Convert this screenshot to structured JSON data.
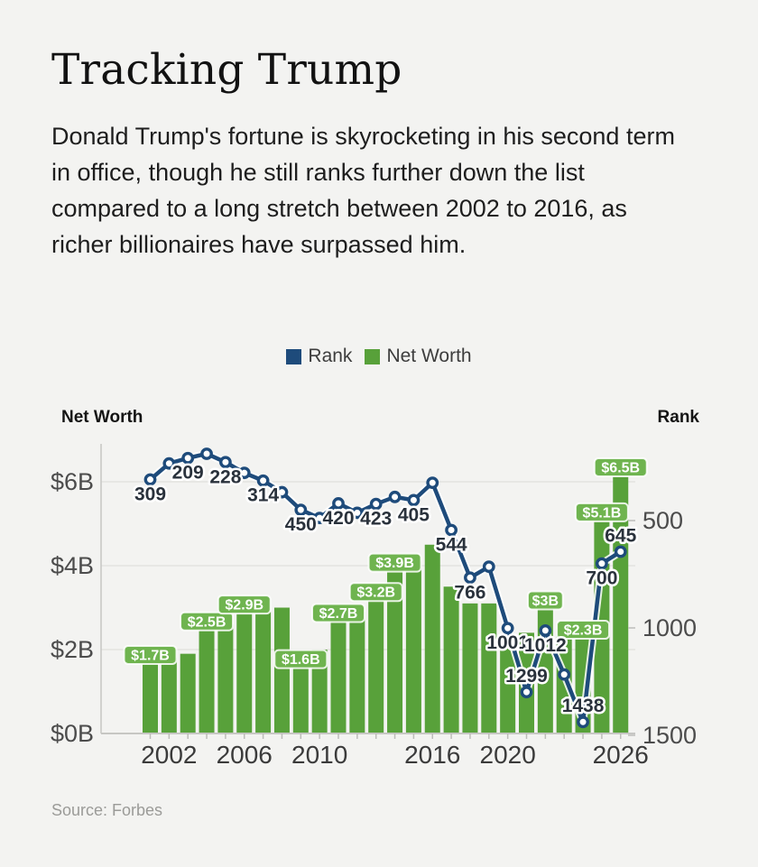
{
  "page": {
    "title": "Tracking Trump",
    "subtitle": "Donald Trump's fortune is skyrocketing in his second term in office, though he still ranks further down the list compared to a long stretch between 2002 to 2016, as richer billionaires have surpassed him.",
    "source": "Source: Forbes"
  },
  "legend": {
    "items": [
      {
        "label": "Rank",
        "color": "#1e4b7b"
      },
      {
        "label": "Net Worth",
        "color": "#58a13a"
      }
    ]
  },
  "axes": {
    "left_title": "Net Worth",
    "right_title": "Rank"
  },
  "colors": {
    "background": "#f3f3f1",
    "bar_green": "#58a13a",
    "label_pill_green": "#6fb44f",
    "line_navy": "#1e4b7b",
    "rank_label_text": "#2a323c",
    "gridline": "#e3e3e0",
    "axis_line": "#c6c6c3",
    "tick_label": "#4c4c4c"
  },
  "chart_data": {
    "type": "bar+line (dual axis)",
    "title": "Tracking Trump",
    "x": [
      2001,
      2002,
      2003,
      2004,
      2005,
      2006,
      2007,
      2008,
      2009,
      2010,
      2011,
      2012,
      2013,
      2014,
      2015,
      2016,
      2017,
      2018,
      2019,
      2020,
      2021,
      2022,
      2023,
      2024,
      2025,
      2026
    ],
    "x_tick_labels": [
      "2002",
      "2006",
      "2010",
      "2016",
      "2020",
      "2026"
    ],
    "x_tick_years": [
      2002,
      2006,
      2010,
      2016,
      2020,
      2026
    ],
    "left_axis": {
      "title": "Net Worth",
      "unit": "$ billions",
      "tick_labels": [
        "$6B",
        "$4B",
        "$2B",
        "$0B"
      ],
      "tick_values": [
        6,
        4,
        2,
        0
      ],
      "range": [
        0,
        6.9
      ]
    },
    "right_axis": {
      "title": "Rank",
      "tick_labels": [
        "500",
        "1000",
        "1500"
      ],
      "tick_values": [
        500,
        1000,
        1500
      ],
      "inverted": true
    },
    "grid": "horizontal only",
    "legend_position": "top center",
    "series": [
      {
        "name": "Net Worth",
        "type": "bar",
        "axis": "left",
        "color": "#58a13a",
        "values": [
          1.7,
          1.8,
          1.9,
          2.5,
          2.6,
          2.9,
          2.9,
          3.0,
          1.6,
          2.0,
          2.7,
          2.9,
          3.2,
          3.9,
          4.1,
          4.5,
          3.5,
          3.1,
          3.1,
          2.1,
          2.4,
          3.0,
          2.5,
          2.3,
          5.1,
          6.5
        ],
        "point_labels": [
          "$1.7B",
          null,
          null,
          "$2.5B",
          null,
          "$2.9B",
          null,
          null,
          "$1.6B",
          null,
          "$2.7B",
          null,
          "$3.2B",
          "$3.9B",
          null,
          null,
          null,
          null,
          null,
          null,
          null,
          "$3B",
          null,
          "$2.3B",
          "$5.1B",
          "$6.5B"
        ]
      },
      {
        "name": "Rank",
        "type": "line",
        "axis": "right",
        "color": "#1e4b7b",
        "values": [
          309,
          234,
          209,
          189,
          228,
          278,
          314,
          368,
          450,
          488,
          420,
          464,
          423,
          390,
          405,
          324,
          544,
          766,
          715,
          1001,
          1299,
          1012,
          1217,
          1438,
          700,
          645
        ],
        "point_labels": [
          "309",
          null,
          "209",
          null,
          "228",
          null,
          "314",
          null,
          "450",
          null,
          "420",
          null,
          "423",
          null,
          "405",
          null,
          "544",
          "766",
          null,
          "1001",
          "1299",
          "1012",
          null,
          "1438",
          "700",
          "645"
        ],
        "label_positions": [
          "below",
          null,
          "below",
          null,
          "below",
          null,
          "below",
          null,
          "below",
          null,
          "below",
          null,
          "below",
          null,
          "below",
          null,
          "below",
          "below",
          null,
          "below",
          "above",
          "below",
          null,
          "above",
          "below",
          "above"
        ]
      }
    ]
  }
}
